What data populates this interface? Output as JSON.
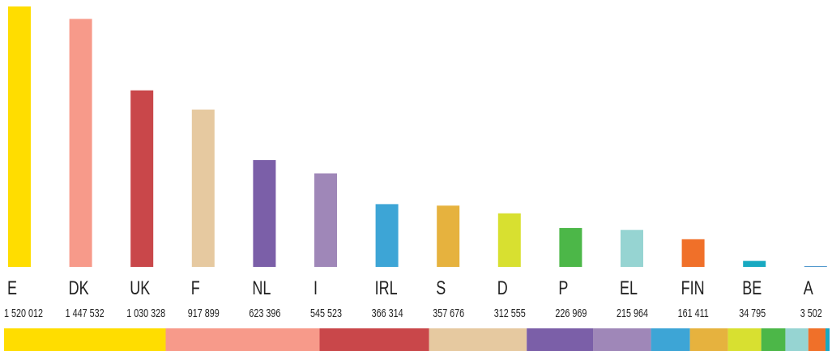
{
  "chart_data": {
    "type": "bar",
    "categories": [
      "E",
      "DK",
      "UK",
      "F",
      "NL",
      "I",
      "IRL",
      "S",
      "D",
      "P",
      "EL",
      "FIN",
      "BE",
      "A"
    ],
    "values": [
      1520012,
      1447532,
      1030328,
      917899,
      623396,
      545523,
      366314,
      357676,
      312555,
      226969,
      215964,
      161411,
      34795,
      3502
    ],
    "value_labels": [
      "1 520 012",
      "1 447 532",
      "1 030 328",
      "917 899",
      "623 396",
      "545 523",
      "366 314",
      "357 676",
      "312 555",
      "226 969",
      "215 964",
      "161 411",
      "34 795",
      "3 502"
    ],
    "colors": [
      "#ffdd00",
      "#f79a8a",
      "#c9474a",
      "#e6c9a0",
      "#7b5fa8",
      "#9f87b8",
      "#3da5d6",
      "#e6b23e",
      "#d8e030",
      "#4cb748",
      "#96d4d2",
      "#f07029",
      "#18a9c1",
      "#1a78bd"
    ],
    "ylim": [
      0,
      1520012
    ]
  }
}
